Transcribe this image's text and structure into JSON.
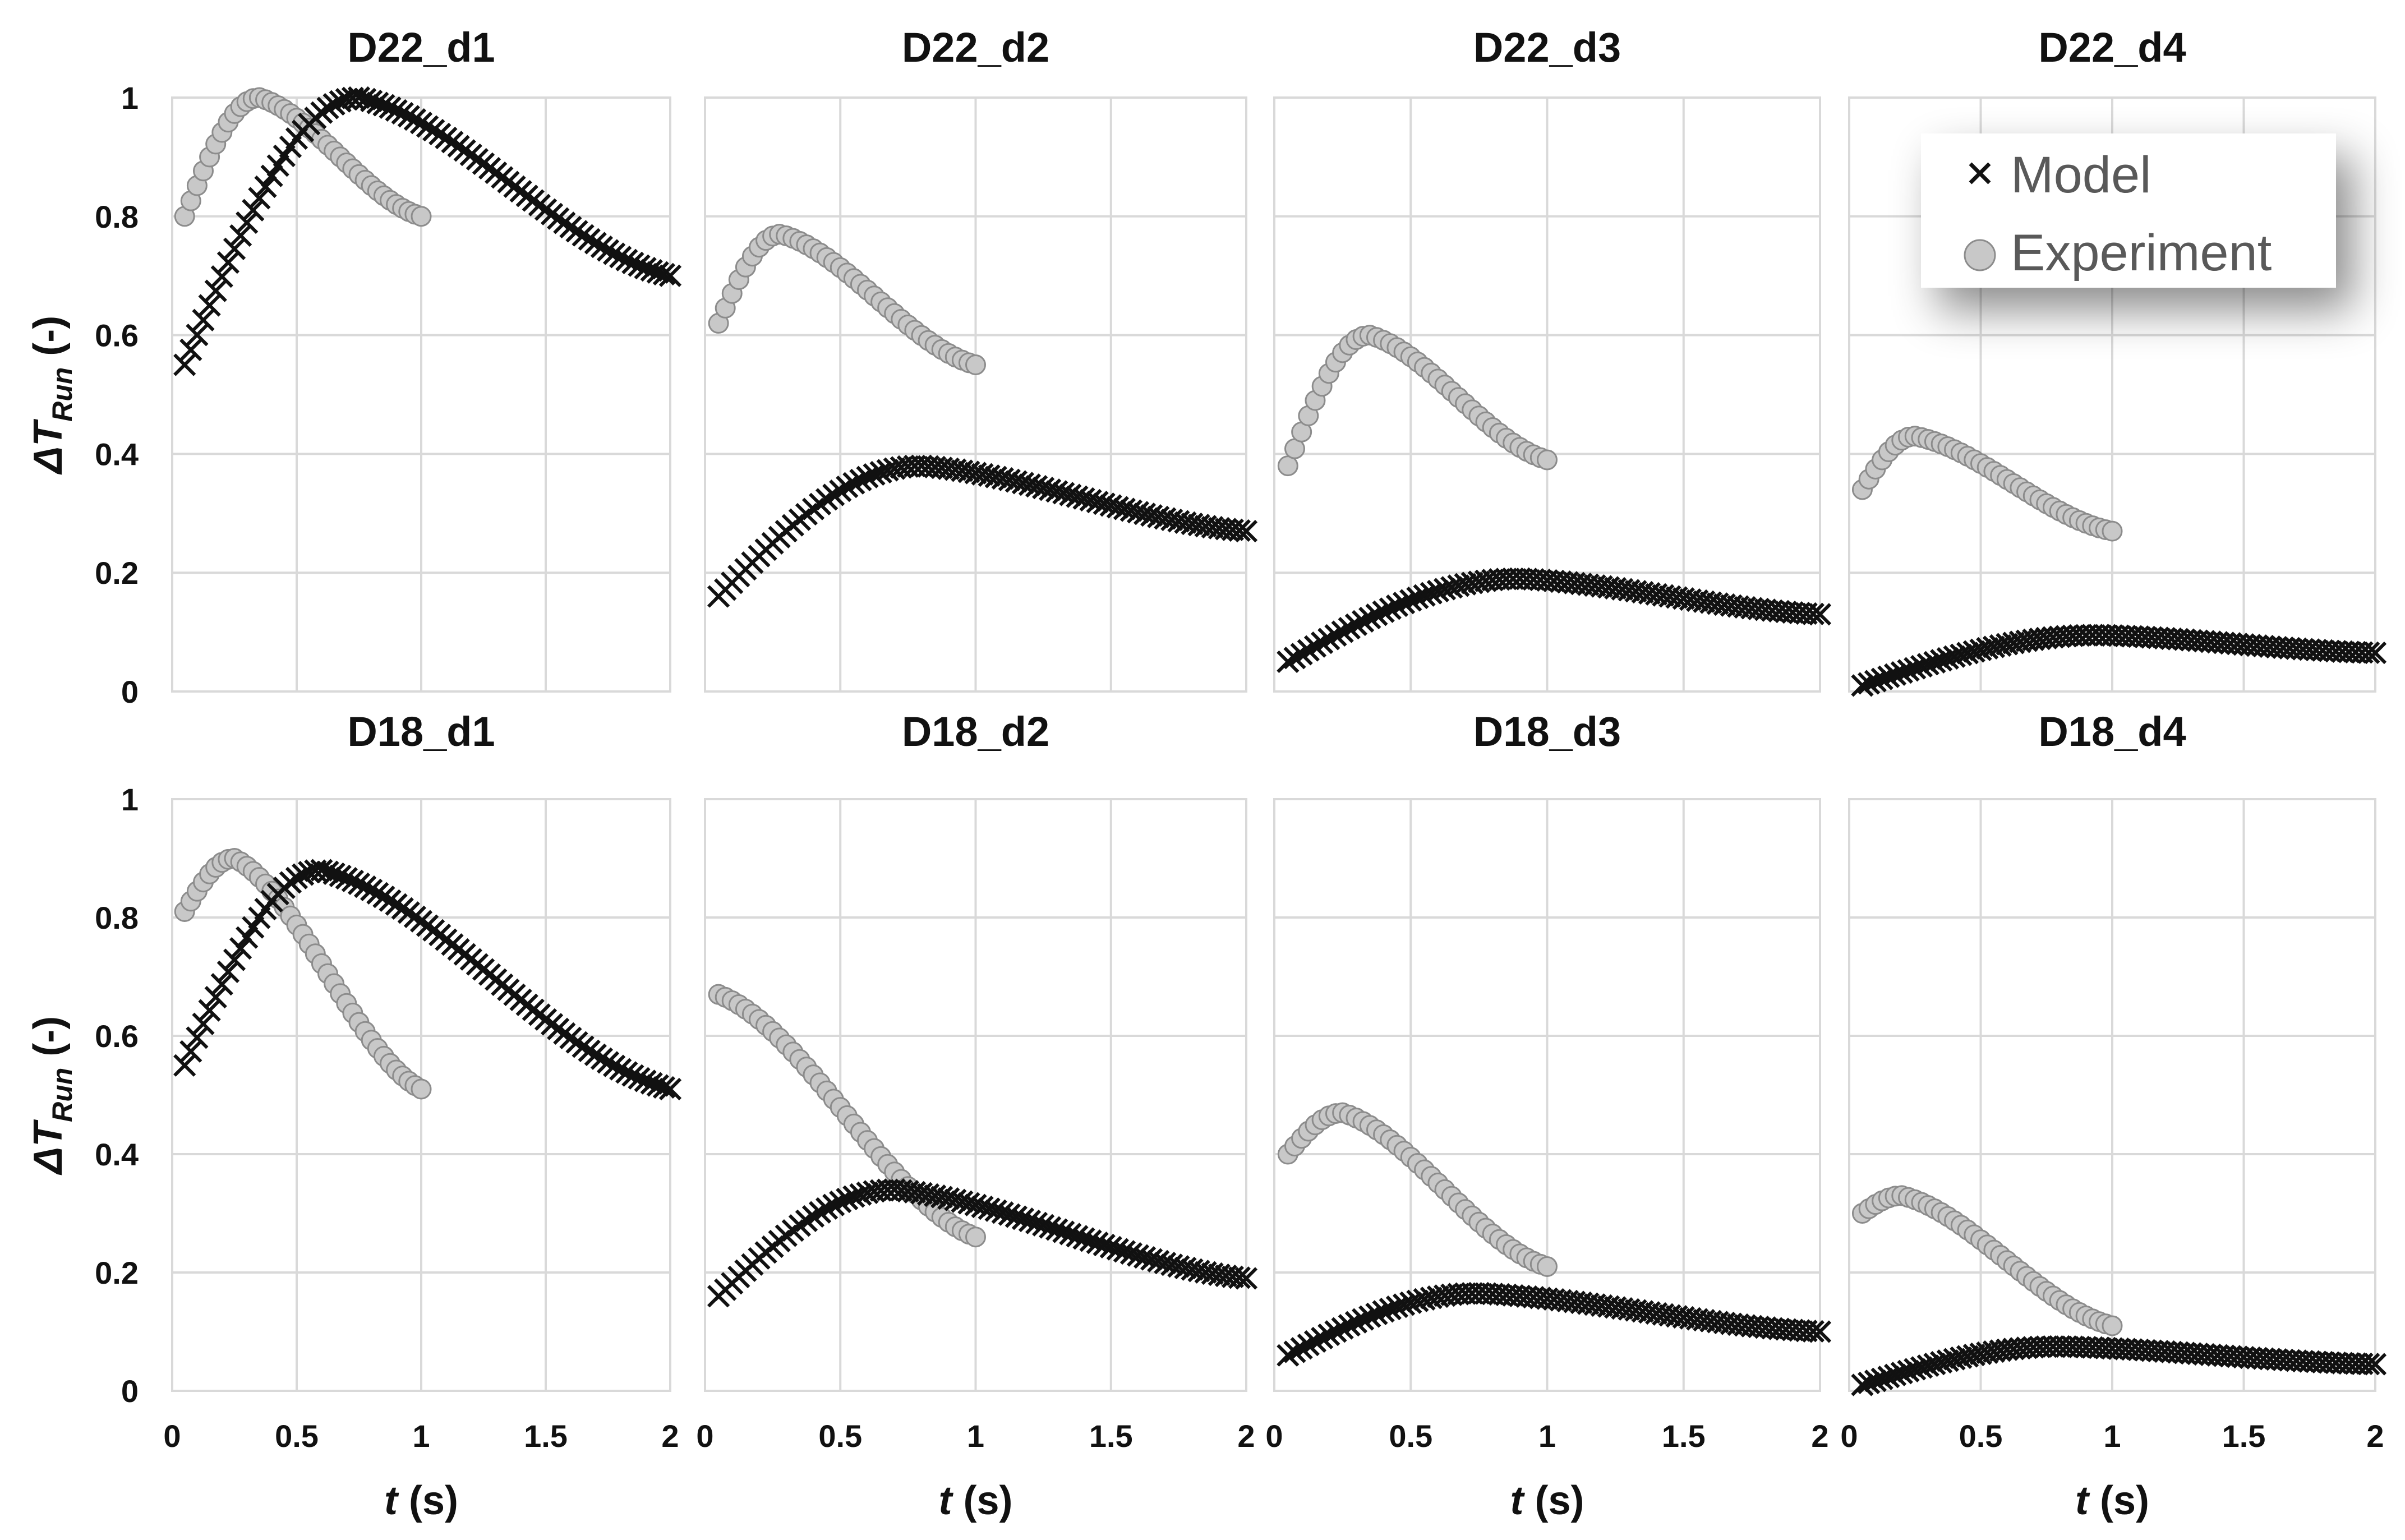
{
  "chart_data": {
    "type": "scatter",
    "legend": {
      "position": "top-right",
      "entries": [
        {
          "name": "Model",
          "marker": "x",
          "color": "#111111"
        },
        {
          "name": "Experiment",
          "marker": "circle",
          "color": "#c8c8c8",
          "edge": "#8c8c8c"
        }
      ]
    },
    "x_label": {
      "var": "t",
      "unit": " (s)"
    },
    "y_label": {
      "main": "ΔT",
      "sub": "Run",
      "unit": " (-)"
    },
    "xlim": [
      0,
      2
    ],
    "ylim": [
      0,
      1
    ],
    "x_ticks": [
      "0",
      "0.5",
      "1",
      "1.5",
      "2"
    ],
    "y_ticks": [
      "0",
      "0.2",
      "0.4",
      "0.6",
      "0.8",
      "1"
    ],
    "panels": [
      {
        "title": "D22_d1",
        "model": {
          "t0": 0.05,
          "t1": 2.0,
          "y0": 0.55,
          "ypeak": 1.0,
          "tpeak": 0.75,
          "yend": 0.7
        },
        "experiment": {
          "t0": 0.05,
          "t1": 1.0,
          "y0": 0.8,
          "ypeak": 1.0,
          "tpeak": 0.35,
          "yend": 0.8
        }
      },
      {
        "title": "D22_d2",
        "model": {
          "t0": 0.05,
          "t1": 2.0,
          "y0": 0.16,
          "ypeak": 0.38,
          "tpeak": 0.8,
          "yend": 0.27
        },
        "experiment": {
          "t0": 0.05,
          "t1": 1.0,
          "y0": 0.62,
          "ypeak": 0.77,
          "tpeak": 0.28,
          "yend": 0.55
        }
      },
      {
        "title": "D22_d3",
        "model": {
          "t0": 0.05,
          "t1": 2.0,
          "y0": 0.05,
          "ypeak": 0.19,
          "tpeak": 0.9,
          "yend": 0.13
        },
        "experiment": {
          "t0": 0.05,
          "t1": 1.0,
          "y0": 0.38,
          "ypeak": 0.6,
          "tpeak": 0.35,
          "yend": 0.39
        }
      },
      {
        "title": "D22_d4",
        "model": {
          "t0": 0.05,
          "t1": 2.0,
          "y0": 0.01,
          "ypeak": 0.095,
          "tpeak": 0.95,
          "yend": 0.065
        },
        "experiment": {
          "t0": 0.05,
          "t1": 1.0,
          "y0": 0.34,
          "ypeak": 0.43,
          "tpeak": 0.25,
          "yend": 0.27
        }
      },
      {
        "title": "D18_d1",
        "model": {
          "t0": 0.05,
          "t1": 2.0,
          "y0": 0.55,
          "ypeak": 0.88,
          "tpeak": 0.6,
          "yend": 0.51
        },
        "experiment": {
          "t0": 0.05,
          "t1": 1.0,
          "y0": 0.81,
          "ypeak": 0.9,
          "tpeak": 0.25,
          "yend": 0.51
        }
      },
      {
        "title": "D18_d2",
        "model": {
          "t0": 0.05,
          "t1": 2.0,
          "y0": 0.16,
          "ypeak": 0.34,
          "tpeak": 0.7,
          "yend": 0.19
        },
        "experiment": {
          "t0": 0.05,
          "t1": 1.0,
          "y0": 0.67,
          "ypeak": 0.67,
          "tpeak": 0.05,
          "yend": 0.26
        }
      },
      {
        "title": "D18_d3",
        "model": {
          "t0": 0.05,
          "t1": 2.0,
          "y0": 0.06,
          "ypeak": 0.165,
          "tpeak": 0.75,
          "yend": 0.1
        },
        "experiment": {
          "t0": 0.05,
          "t1": 1.0,
          "y0": 0.4,
          "ypeak": 0.47,
          "tpeak": 0.25,
          "yend": 0.21
        }
      },
      {
        "title": "D18_d4",
        "model": {
          "t0": 0.05,
          "t1": 2.0,
          "y0": 0.01,
          "ypeak": 0.075,
          "tpeak": 0.8,
          "yend": 0.045
        },
        "experiment": {
          "t0": 0.05,
          "t1": 1.0,
          "y0": 0.3,
          "ypeak": 0.33,
          "tpeak": 0.2,
          "yend": 0.11
        }
      }
    ]
  }
}
